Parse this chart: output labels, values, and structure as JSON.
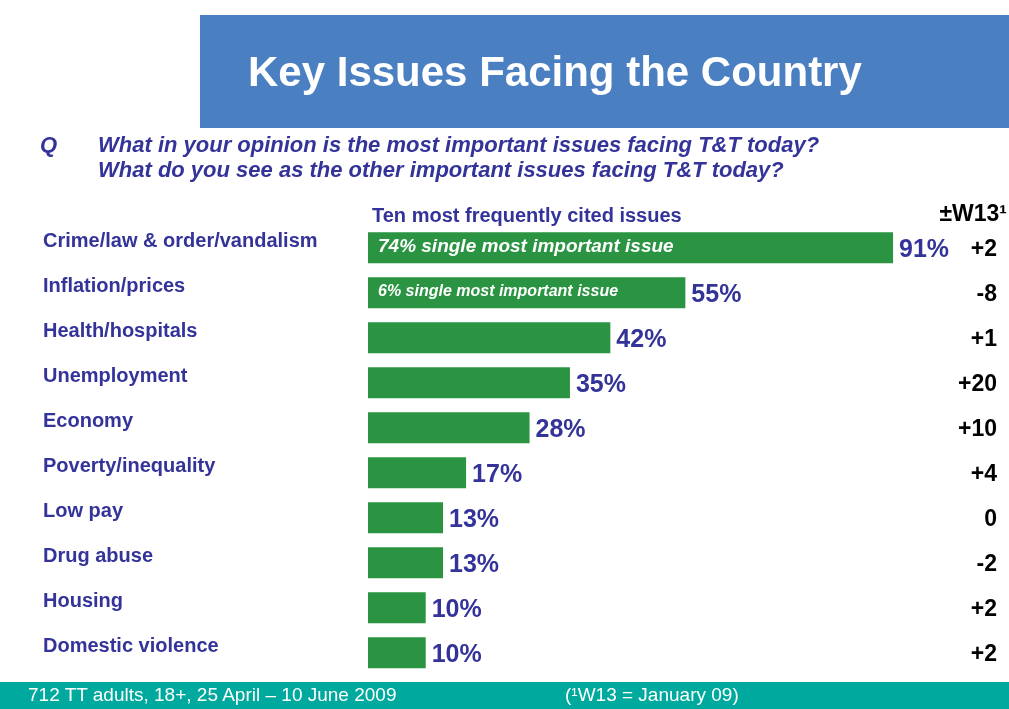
{
  "chart_data": {
    "type": "bar",
    "orientation": "horizontal",
    "title": "Key Issues Facing the Country",
    "subtitle": "Q\tWhat in your opinion is the most important issues facing T&T today?\nWhat do you see as the other important issues facing T&T today?",
    "xlabel": "Ten most frequently cited issues",
    "categories": [
      "Crime/law & order/vandalism",
      "Inflation/prices",
      "Health/hospitals",
      "Unemployment",
      "Economy",
      "Poverty/inequality",
      "Low pay",
      "Drug abuse",
      "Housing",
      "Domestic violence"
    ],
    "values": [
      91,
      55,
      42,
      35,
      28,
      17,
      13,
      13,
      10,
      10
    ],
    "value_labels": [
      "91%",
      "55%",
      "42%",
      "35%",
      "28%",
      "17%",
      "13%",
      "13%",
      "10%",
      "10%"
    ],
    "color": "#2a9442",
    "tick_labels": "y",
    "grid": false,
    "legend": false,
    "annotations": [
      "74% single most important issue",
      "6% single most important issue",
      "±W13¹",
      "+2",
      "-8",
      "+1",
      "+20",
      "+10",
      "+4",
      "0",
      "-2",
      "+2",
      "+2",
      "712 TT adults, 18+, 25 April – 10 June 2009",
      "(¹W13 = January 09)"
    ]
  }
}
